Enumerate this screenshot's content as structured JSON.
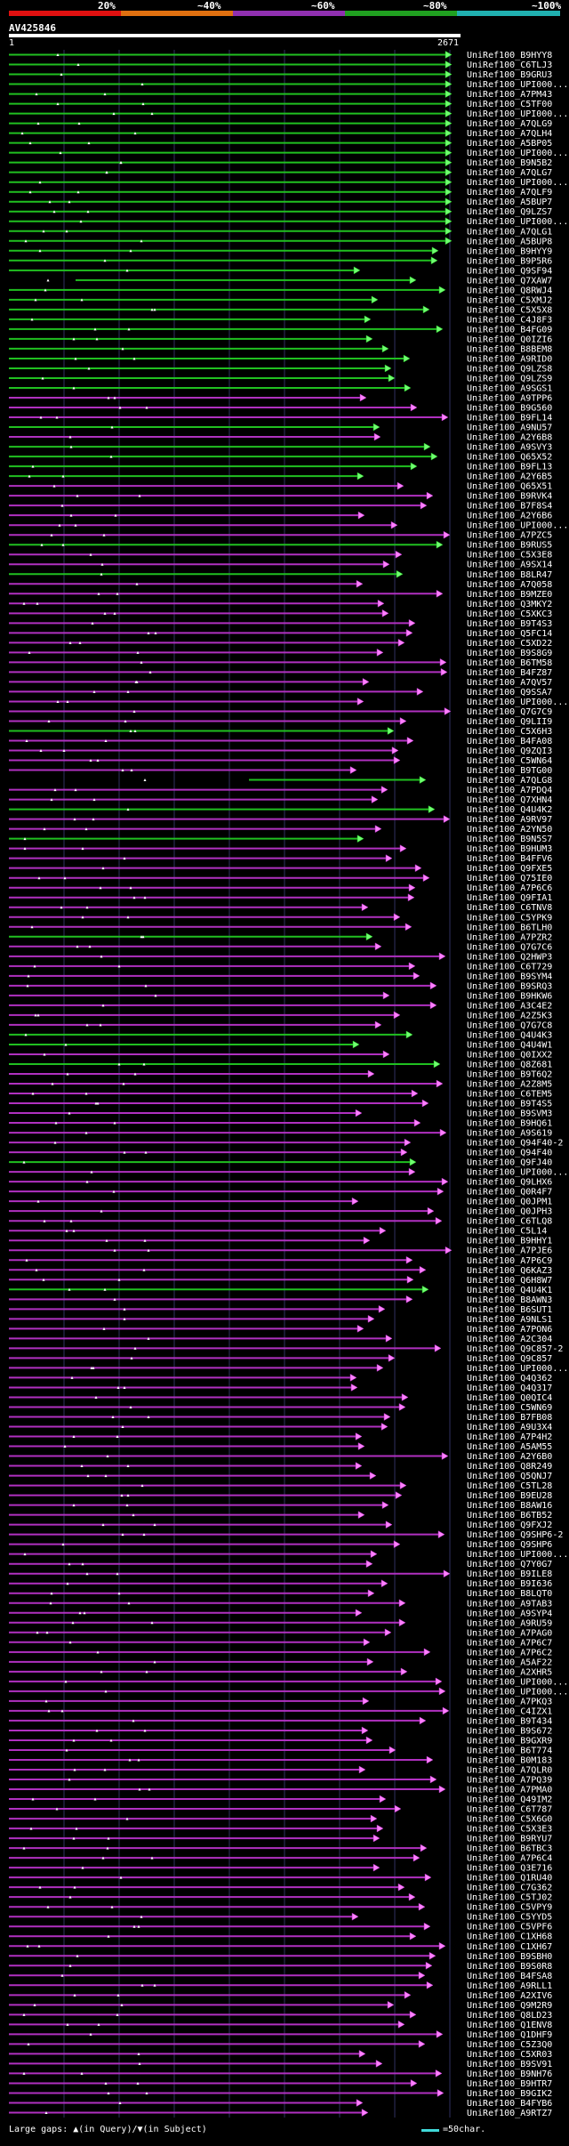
{
  "header": {
    "percent_labels": [
      "20%",
      "~40%",
      "~60%",
      "~80%",
      "~100%"
    ],
    "colors": [
      "#e01010",
      "#e07010",
      "#9030b0",
      "#20a020",
      "#20b0b0"
    ],
    "query_id": "AV425846",
    "start_label": "1",
    "end_label": "2671"
  },
  "footer": {
    "gaps_text": "Large gaps: ▲(in Query)/▼(in Subject)",
    "scale_text": "=50char."
  },
  "colors": {
    "green": "#20c020",
    "green_head": "#70ff70",
    "magenta": "#b030c0",
    "magenta_head": "#ff80ff",
    "grid": "#303060"
  },
  "hits": [
    {
      "label": "UniRef100_B9HYY8",
      "color": "green"
    },
    {
      "label": "UniRef100_C6TLJ3",
      "color": "green"
    },
    {
      "label": "UniRef100_B9GRU3",
      "color": "green"
    },
    {
      "label": "UniRef100_UPI000...",
      "color": "green"
    },
    {
      "label": "UniRef100_A7PM43",
      "color": "green"
    },
    {
      "label": "UniRef100_C5TF00",
      "color": "green"
    },
    {
      "label": "UniRef100_UPI000...",
      "color": "green"
    },
    {
      "label": "UniRef100_A7QLG9",
      "color": "green"
    },
    {
      "label": "UniRef100_A7QLH4",
      "color": "green"
    },
    {
      "label": "UniRef100_A5BP05",
      "color": "green"
    },
    {
      "label": "UniRef100_UPI000...",
      "color": "green"
    },
    {
      "label": "UniRef100_B9N5B2",
      "color": "green"
    },
    {
      "label": "UniRef100_A7QLG7",
      "color": "green"
    },
    {
      "label": "UniRef100_UPI000...",
      "color": "green"
    },
    {
      "label": "UniRef100_A7QLF9",
      "color": "green"
    },
    {
      "label": "UniRef100_A5BUP7",
      "color": "green"
    },
    {
      "label": "UniRef100_Q9LZS7",
      "color": "green"
    },
    {
      "label": "UniRef100_UPI000...",
      "color": "green"
    },
    {
      "label": "UniRef100_A7QLG1",
      "color": "green"
    },
    {
      "label": "UniRef100_A5BUP8",
      "color": "green"
    },
    {
      "label": "UniRef100_B9HYY9",
      "color": "green"
    },
    {
      "label": "UniRef100_B9P5R6",
      "color": "green"
    },
    {
      "label": "UniRef100_Q9SF94",
      "color": "green"
    },
    {
      "label": "UniRef100_Q7XAW7",
      "color": "green"
    },
    {
      "label": "UniRef100_Q8RWJ4",
      "color": "green"
    },
    {
      "label": "UniRef100_C5XMJ2",
      "color": "green"
    },
    {
      "label": "UniRef100_C5X5X8",
      "color": "green"
    },
    {
      "label": "UniRef100_C4J8F3",
      "color": "green"
    },
    {
      "label": "UniRef100_B4FG09",
      "color": "green"
    },
    {
      "label": "UniRef100_Q0IZI6",
      "color": "green"
    },
    {
      "label": "UniRef100_B8BEM8",
      "color": "green"
    },
    {
      "label": "UniRef100_A9RID0",
      "color": "green"
    },
    {
      "label": "UniRef100_Q9LZS8",
      "color": "green"
    },
    {
      "label": "UniRef100_Q9LZS9",
      "color": "green"
    },
    {
      "label": "UniRef100_A9SGS1",
      "color": "green"
    },
    {
      "label": "UniRef100_A9TPP6",
      "color": "magenta"
    },
    {
      "label": "UniRef100_B9G560",
      "color": "magenta"
    },
    {
      "label": "UniRef100_B9FL14",
      "color": "magenta"
    },
    {
      "label": "UniRef100_A9NU57",
      "color": "green"
    },
    {
      "label": "UniRef100_A2Y6B8",
      "color": "magenta"
    },
    {
      "label": "UniRef100_A9SVY3",
      "color": "green"
    },
    {
      "label": "UniRef100_Q65X52",
      "color": "green"
    },
    {
      "label": "UniRef100_B9FL13",
      "color": "green"
    },
    {
      "label": "UniRef100_A2Y6B5",
      "color": "green"
    },
    {
      "label": "UniRef100_Q65X51",
      "color": "magenta"
    },
    {
      "label": "UniRef100_B9RVK4",
      "color": "magenta"
    },
    {
      "label": "UniRef100_B7F8S4",
      "color": "magenta"
    },
    {
      "label": "UniRef100_A2Y6B6",
      "color": "magenta"
    },
    {
      "label": "UniRef100_UPI000...",
      "color": "magenta"
    },
    {
      "label": "UniRef100_A7PZC5",
      "color": "magenta"
    },
    {
      "label": "UniRef100_B9RUS5",
      "color": "green"
    },
    {
      "label": "UniRef100_C5X3E8",
      "color": "magenta"
    },
    {
      "label": "UniRef100_A9SX14",
      "color": "magenta"
    },
    {
      "label": "UniRef100_B8LR47",
      "color": "green"
    },
    {
      "label": "UniRef100_A7Q058",
      "color": "magenta"
    },
    {
      "label": "UniRef100_B9MZE0",
      "color": "magenta"
    },
    {
      "label": "UniRef100_Q3MKY2",
      "color": "magenta"
    },
    {
      "label": "UniRef100_C5XKC3",
      "color": "magenta"
    },
    {
      "label": "UniRef100_B9T4S3",
      "color": "magenta"
    },
    {
      "label": "UniRef100_Q5FC14",
      "color": "magenta"
    },
    {
      "label": "UniRef100_C5XD22",
      "color": "magenta"
    },
    {
      "label": "UniRef100_B9S8G9",
      "color": "magenta"
    },
    {
      "label": "UniRef100_B6TM58",
      "color": "magenta"
    },
    {
      "label": "UniRef100_B4FZ87",
      "color": "magenta"
    },
    {
      "label": "UniRef100_A7QV57",
      "color": "magenta"
    },
    {
      "label": "UniRef100_Q9SSA7",
      "color": "magenta"
    },
    {
      "label": "UniRef100_UPI000...",
      "color": "magenta"
    },
    {
      "label": "UniRef100_Q7G7C9",
      "color": "magenta"
    },
    {
      "label": "UniRef100_Q9LII9",
      "color": "magenta"
    },
    {
      "label": "UniRef100_C5X6H3",
      "color": "green"
    },
    {
      "label": "UniRef100_B4FA08",
      "color": "magenta"
    },
    {
      "label": "UniRef100_Q9ZQI3",
      "color": "magenta"
    },
    {
      "label": "UniRef100_C5WN64",
      "color": "magenta"
    },
    {
      "label": "UniRef100_B9TG00",
      "color": "magenta"
    },
    {
      "label": "UniRef100_A7QLG8",
      "color": "green"
    },
    {
      "label": "UniRef100_A7PDQ4",
      "color": "magenta"
    },
    {
      "label": "UniRef100_Q7XHN4",
      "color": "magenta"
    },
    {
      "label": "UniRef100_Q4U4K2",
      "color": "green"
    },
    {
      "label": "UniRef100_A9RV97",
      "color": "magenta"
    },
    {
      "label": "UniRef100_A2YN50",
      "color": "magenta"
    },
    {
      "label": "UniRef100_B9N5S7",
      "color": "green"
    },
    {
      "label": "UniRef100_B9HUM3",
      "color": "magenta"
    },
    {
      "label": "UniRef100_B4FFV6",
      "color": "magenta"
    },
    {
      "label": "UniRef100_Q9FXE5",
      "color": "magenta"
    },
    {
      "label": "UniRef100_Q75IE0",
      "color": "magenta"
    },
    {
      "label": "UniRef100_A7P6C6",
      "color": "magenta"
    },
    {
      "label": "UniRef100_Q9FIA1",
      "color": "magenta"
    },
    {
      "label": "UniRef100_C6TNV8",
      "color": "magenta"
    },
    {
      "label": "UniRef100_C5YPK9",
      "color": "magenta"
    },
    {
      "label": "UniRef100_B6TLH0",
      "color": "magenta"
    },
    {
      "label": "UniRef100_A7PZR2",
      "color": "green"
    },
    {
      "label": "UniRef100_Q7G7C6",
      "color": "magenta"
    },
    {
      "label": "UniRef100_Q2HWP3",
      "color": "magenta"
    },
    {
      "label": "UniRef100_C6T729",
      "color": "magenta"
    },
    {
      "label": "UniRef100_B9SYM4",
      "color": "magenta"
    },
    {
      "label": "UniRef100_B9SRQ3",
      "color": "magenta"
    },
    {
      "label": "UniRef100_B9HKW6",
      "color": "magenta"
    },
    {
      "label": "UniRef100_A3C4E2",
      "color": "magenta"
    },
    {
      "label": "UniRef100_A2Z5K3",
      "color": "magenta"
    },
    {
      "label": "UniRef100_Q7G7C8",
      "color": "magenta"
    },
    {
      "label": "UniRef100_Q4U4K3",
      "color": "green"
    },
    {
      "label": "UniRef100_Q4U4W1",
      "color": "green"
    },
    {
      "label": "UniRef100_Q0IXX2",
      "color": "magenta"
    },
    {
      "label": "UniRef100_Q8Z681",
      "color": "green"
    },
    {
      "label": "UniRef100_B9T6Q2",
      "color": "magenta"
    },
    {
      "label": "UniRef100_A2Z8M5",
      "color": "magenta"
    },
    {
      "label": "UniRef100_C6TEM5",
      "color": "magenta"
    },
    {
      "label": "UniRef100_B9T4S5",
      "color": "magenta"
    },
    {
      "label": "UniRef100_B9SVM3",
      "color": "magenta"
    },
    {
      "label": "UniRef100_B9HQ61",
      "color": "magenta"
    },
    {
      "label": "UniRef100_A9S619",
      "color": "magenta"
    },
    {
      "label": "UniRef100_Q94F40-2",
      "color": "magenta"
    },
    {
      "label": "UniRef100_Q94F40",
      "color": "magenta"
    },
    {
      "label": "UniRef100_Q9FJ40",
      "color": "green"
    },
    {
      "label": "UniRef100_UPI000...",
      "color": "magenta"
    },
    {
      "label": "UniRef100_Q9LHX6",
      "color": "magenta"
    },
    {
      "label": "UniRef100_Q0R4F7",
      "color": "magenta"
    },
    {
      "label": "UniRef100_Q0JPM1",
      "color": "magenta"
    },
    {
      "label": "UniRef100_Q0JPH3",
      "color": "magenta"
    },
    {
      "label": "UniRef100_C6TLQ8",
      "color": "magenta"
    },
    {
      "label": "UniRef100_C5L14",
      "color": "magenta"
    },
    {
      "label": "UniRef100_B9HHY1",
      "color": "magenta"
    },
    {
      "label": "UniRef100_A7PJE6",
      "color": "magenta"
    },
    {
      "label": "UniRef100_A7P6C9",
      "color": "magenta"
    },
    {
      "label": "UniRef100_Q6KAZ3",
      "color": "magenta"
    },
    {
      "label": "UniRef100_Q6H8W7",
      "color": "magenta"
    },
    {
      "label": "UniRef100_Q4U4K1",
      "color": "green"
    },
    {
      "label": "UniRef100_B8AWN3",
      "color": "magenta"
    },
    {
      "label": "UniRef100_B6SUT1",
      "color": "magenta"
    },
    {
      "label": "UniRef100_A9NLS1",
      "color": "magenta"
    },
    {
      "label": "UniRef100_A7PON6",
      "color": "magenta"
    },
    {
      "label": "UniRef100_A2C304",
      "color": "magenta"
    },
    {
      "label": "UniRef100_Q9C857-2",
      "color": "magenta"
    },
    {
      "label": "UniRef100_Q9C857",
      "color": "magenta"
    },
    {
      "label": "UniRef100_UPI000...",
      "color": "magenta"
    },
    {
      "label": "UniRef100_Q4Q362",
      "color": "magenta"
    },
    {
      "label": "UniRef100_Q4Q317",
      "color": "magenta"
    },
    {
      "label": "UniRef100_Q0QIC4",
      "color": "magenta"
    },
    {
      "label": "UniRef100_C5WN69",
      "color": "magenta"
    },
    {
      "label": "UniRef100_B7FB08",
      "color": "magenta"
    },
    {
      "label": "UniRef100_A9U3X4",
      "color": "magenta"
    },
    {
      "label": "UniRef100_A7P4H2",
      "color": "magenta"
    },
    {
      "label": "UniRef100_A5AM55",
      "color": "magenta"
    },
    {
      "label": "UniRef100_A2Y6B0",
      "color": "magenta"
    },
    {
      "label": "UniRef100_Q8R249",
      "color": "magenta"
    },
    {
      "label": "UniRef100_Q5QNJ7",
      "color": "magenta"
    },
    {
      "label": "UniRef100_C5TL28",
      "color": "magenta"
    },
    {
      "label": "UniRef100_B9EU28",
      "color": "magenta"
    },
    {
      "label": "UniRef100_B8AW16",
      "color": "magenta"
    },
    {
      "label": "UniRef100_B6TB52",
      "color": "magenta"
    },
    {
      "label": "UniRef100_Q9FXJ2",
      "color": "magenta"
    },
    {
      "label": "UniRef100_Q9SHP6-2",
      "color": "magenta"
    },
    {
      "label": "UniRef100_Q9SHP6",
      "color": "magenta"
    },
    {
      "label": "UniRef100_UPI000...",
      "color": "magenta"
    },
    {
      "label": "UniRef100_Q7Y0G7",
      "color": "magenta"
    },
    {
      "label": "UniRef100_B9ILE8",
      "color": "magenta"
    },
    {
      "label": "UniRef100_B9I636",
      "color": "magenta"
    },
    {
      "label": "UniRef100_B8LQT0",
      "color": "magenta"
    },
    {
      "label": "UniRef100_A9TAB3",
      "color": "magenta"
    },
    {
      "label": "UniRef100_A9SYP4",
      "color": "magenta"
    },
    {
      "label": "UniRef100_A9RU59",
      "color": "magenta"
    },
    {
      "label": "UniRef100_A7PAG0",
      "color": "magenta"
    },
    {
      "label": "UniRef100_A7P6C7",
      "color": "magenta"
    },
    {
      "label": "UniRef100_A7P6C2",
      "color": "magenta"
    },
    {
      "label": "UniRef100_A5AF22",
      "color": "magenta"
    },
    {
      "label": "UniRef100_A2XHR5",
      "color": "magenta"
    },
    {
      "label": "UniRef100_UPI000...",
      "color": "magenta"
    },
    {
      "label": "UniRef100_UPI000...",
      "color": "magenta"
    },
    {
      "label": "UniRef100_A7PKQ3",
      "color": "magenta"
    },
    {
      "label": "UniRef100_C4IZX1",
      "color": "magenta"
    },
    {
      "label": "UniRef100_B9T434",
      "color": "magenta"
    },
    {
      "label": "UniRef100_B9S672",
      "color": "magenta"
    },
    {
      "label": "UniRef100_B9GXR9",
      "color": "magenta"
    },
    {
      "label": "UniRef100_B6T774",
      "color": "magenta"
    },
    {
      "label": "UniRef100_B0M183",
      "color": "magenta"
    },
    {
      "label": "UniRef100_A7QLR0",
      "color": "magenta"
    },
    {
      "label": "UniRef100_A7PQ39",
      "color": "magenta"
    },
    {
      "label": "UniRef100_A7PMA0",
      "color": "magenta"
    },
    {
      "label": "UniRef100_Q49IM2",
      "color": "magenta"
    },
    {
      "label": "UniRef100_C6T787",
      "color": "magenta"
    },
    {
      "label": "UniRef100_C5X6G0",
      "color": "magenta"
    },
    {
      "label": "UniRef100_C5X3E3",
      "color": "magenta"
    },
    {
      "label": "UniRef100_B9RYU7",
      "color": "magenta"
    },
    {
      "label": "UniRef100_B6TBC3",
      "color": "magenta"
    },
    {
      "label": "UniRef100_A7P6C4",
      "color": "magenta"
    },
    {
      "label": "UniRef100_Q3E716",
      "color": "magenta"
    },
    {
      "label": "UniRef100_Q1RU40",
      "color": "magenta"
    },
    {
      "label": "UniRef100_C7G362",
      "color": "magenta"
    },
    {
      "label": "UniRef100_C5TJ02",
      "color": "magenta"
    },
    {
      "label": "UniRef100_C5VPY9",
      "color": "magenta"
    },
    {
      "label": "UniRef100_C5YYD5",
      "color": "magenta"
    },
    {
      "label": "UniRef100_C5VPF6",
      "color": "magenta"
    },
    {
      "label": "UniRef100_C1XH68",
      "color": "magenta"
    },
    {
      "label": "UniRef100_C1XH67",
      "color": "magenta"
    },
    {
      "label": "UniRef100_B9SBH0",
      "color": "magenta"
    },
    {
      "label": "UniRef100_B9S0R8",
      "color": "magenta"
    },
    {
      "label": "UniRef100_B4FSA8",
      "color": "magenta"
    },
    {
      "label": "UniRef100_A9RLL1",
      "color": "magenta"
    },
    {
      "label": "UniRef100_A2XIV6",
      "color": "magenta"
    },
    {
      "label": "UniRef100_Q9M2R9",
      "color": "magenta"
    },
    {
      "label": "UniRef100_Q8LD23",
      "color": "magenta"
    },
    {
      "label": "UniRef100_Q1ENV8",
      "color": "magenta"
    },
    {
      "label": "UniRef100_Q1DHF9",
      "color": "magenta"
    },
    {
      "label": "UniRef100_C5Z3Q0",
      "color": "magenta"
    },
    {
      "label": "UniRef100_C5XR03",
      "color": "magenta"
    },
    {
      "label": "UniRef100_B9SV91",
      "color": "magenta"
    },
    {
      "label": "UniRef100_B9NH76",
      "color": "magenta"
    },
    {
      "label": "UniRef100_B9HTR7",
      "color": "magenta"
    },
    {
      "label": "UniRef100_B9GIK2",
      "color": "magenta"
    },
    {
      "label": "UniRef100_B4FYB6",
      "color": "magenta"
    },
    {
      "label": "UniRef100_A9RTZ7",
      "color": "magenta"
    }
  ]
}
